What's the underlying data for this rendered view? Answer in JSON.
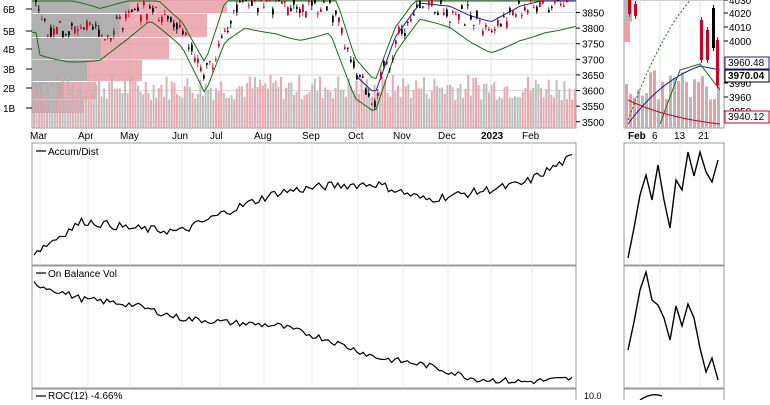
{
  "chart_data": [
    {
      "type": "line",
      "panel": "price-main",
      "ylim": [
        3480,
        3890
      ],
      "y_ticks": [
        3500,
        3550,
        3600,
        3650,
        3700,
        3750,
        3800,
        3850
      ],
      "y_tick_labels": [
        "3500",
        "3550",
        "3600",
        "3650",
        "3700",
        "3750",
        "3800",
        "3850"
      ],
      "x_labels": [
        "Mar",
        "Apr",
        "May",
        "Jun",
        "Jul",
        "Aug",
        "Sep",
        "Oct",
        "Nov",
        "Dec",
        "2023",
        "Feb"
      ],
      "volume_by_price_labels": [
        "6B",
        "5B",
        "4B",
        "3B",
        "2B",
        "1B"
      ],
      "colors": {
        "up": "#000000",
        "down": "#cc0022",
        "upper_band": "#1a6b1a",
        "lower_band": "#1a6b1a",
        "ma": "#1a1aa0",
        "volume": "#e6a0a8",
        "vbp": "#b0b0b0"
      },
      "series": [
        {
          "x": [
            "Oct",
            "Nov",
            "Dec",
            "2023",
            "Feb"
          ],
          "y": [
            3600,
            3790,
            3830,
            3770,
            3830
          ]
        }
      ]
    },
    {
      "type": "line",
      "panel": "price-zoom",
      "ylim": [
        3930,
        4040
      ],
      "y_ticks": [
        3950,
        3960,
        3990,
        4000,
        4010,
        4020,
        4030
      ],
      "y_tick_labels": [
        "3950",
        "3960",
        "3990",
        "4000",
        "4010",
        "4020",
        "4030"
      ],
      "x_labels": [
        "Feb",
        "6",
        "13",
        "21"
      ],
      "value_boxes": [
        "3960.48",
        "3970.04",
        "3940.12"
      ],
      "series": [
        {
          "x": [
            "Feb",
            "6",
            "13",
            "21"
          ],
          "y": [
            3990,
            3962,
            3958,
            3970.04
          ]
        }
      ]
    },
    {
      "type": "line",
      "panel": "accum-dist",
      "title": "Accum/Dist",
      "series": [
        {
          "x": [
            "Mar",
            "Apr",
            "May",
            "Jun",
            "Jul",
            "Aug",
            "Sep",
            "Oct",
            "Nov",
            "Dec",
            "2023",
            "Feb"
          ],
          "y": [
            0.05,
            0.35,
            0.28,
            0.25,
            0.45,
            0.62,
            0.68,
            0.7,
            0.55,
            0.62,
            0.7,
            0.95
          ]
        }
      ]
    },
    {
      "type": "line",
      "panel": "obv",
      "title": "On Balance Vol",
      "series": [
        {
          "x": [
            "Mar",
            "Apr",
            "May",
            "Jun",
            "Jul",
            "Aug",
            "Sep",
            "Oct",
            "Nov",
            "Dec",
            "2023",
            "Feb"
          ],
          "y": [
            0.95,
            0.8,
            0.75,
            0.62,
            0.58,
            0.55,
            0.42,
            0.25,
            0.18,
            0.05,
            0.02,
            0.05
          ]
        }
      ]
    },
    {
      "type": "line",
      "panel": "roc",
      "title": "ROC(12) -4.66%",
      "y_tick_labels": [
        "10.0"
      ]
    }
  ]
}
